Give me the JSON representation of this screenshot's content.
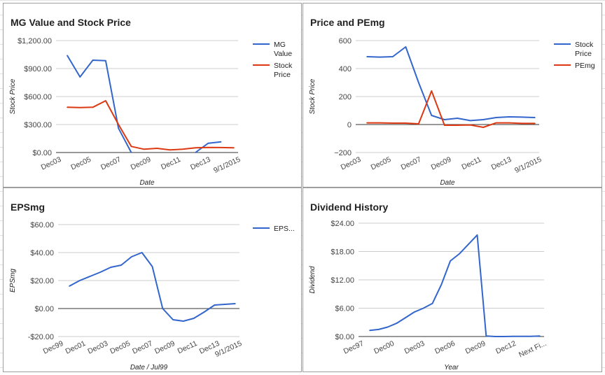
{
  "chart_data": [
    {
      "type": "line",
      "title": "MG Value and Stock Price",
      "xlabel": "Date",
      "ylabel": "Stock Price",
      "ylim": [
        0,
        1200
      ],
      "yticks": [
        0,
        300,
        600,
        900,
        1200
      ],
      "ytick_labels": [
        "$0.00",
        "$300.00",
        "$600.00",
        "$900.00",
        "$1,200.00"
      ],
      "x_tick_labels": [
        "Dec03",
        "Dec05",
        "Dec07",
        "Dec09",
        "Dec11",
        "Dec13",
        "9/1/2015"
      ],
      "grid": true,
      "legend": "right",
      "series": [
        {
          "name": "MG Value",
          "color": "#3366cc",
          "values": [
            1040,
            810,
            990,
            985,
            260,
            0,
            null,
            null,
            null,
            null,
            0,
            100,
            115,
            null
          ]
        },
        {
          "name": "Stock Price",
          "color": "#dc3912",
          "values": [
            485,
            482,
            485,
            555,
            300,
            65,
            35,
            45,
            28,
            35,
            50,
            55,
            53,
            50
          ]
        }
      ]
    },
    {
      "type": "line",
      "title": "Price and PEmg",
      "xlabel": "Date",
      "ylabel": "Stock Price",
      "ylim": [
        -200,
        600
      ],
      "yticks": [
        -200,
        0,
        200,
        400,
        600
      ],
      "ytick_labels": [
        "−200",
        "0",
        "200",
        "400",
        "600"
      ],
      "x_tick_labels": [
        "Dec03",
        "Dec05",
        "Dec07",
        "Dec09",
        "Dec11",
        "Dec13",
        "9/1/2015"
      ],
      "grid": true,
      "legend": "right",
      "series": [
        {
          "name": "Stock Price",
          "color": "#3366cc",
          "values": [
            485,
            482,
            485,
            555,
            300,
            65,
            35,
            45,
            28,
            35,
            50,
            55,
            53,
            50
          ]
        },
        {
          "name": "PEmg",
          "color": "#dc3912",
          "values": [
            12,
            12,
            10,
            10,
            5,
            240,
            -5,
            -5,
            -3,
            -20,
            12,
            12,
            8,
            8
          ]
        }
      ]
    },
    {
      "type": "line",
      "title": "EPSmg",
      "xlabel": "Date / Jul99",
      "ylabel": "EPSmg",
      "ylim": [
        -20,
        60
      ],
      "yticks": [
        -20,
        0,
        20,
        40,
        60
      ],
      "ytick_labels": [
        "-$20.00",
        "$0.00",
        "$20.00",
        "$40.00",
        "$60.00"
      ],
      "x_tick_labels": [
        "Dec99",
        "Dec01",
        "Dec03",
        "Dec05",
        "Dec07",
        "Dec09",
        "Dec11",
        "Dec13",
        "9/1/2015"
      ],
      "grid": true,
      "legend": "right",
      "series": [
        {
          "name": "EPS...",
          "color": "#3366cc",
          "values": [
            16,
            20,
            23,
            26,
            29.5,
            31,
            37,
            40,
            30,
            0,
            -8,
            -9,
            -7,
            -2.5,
            2.5,
            3,
            3.5
          ]
        }
      ]
    },
    {
      "type": "line",
      "title": "Dividend History",
      "xlabel": "Year",
      "ylabel": "Dividend",
      "ylim": [
        0,
        24
      ],
      "yticks": [
        0,
        6,
        12,
        18,
        24
      ],
      "ytick_labels": [
        "$0.00",
        "$6.00",
        "$12.00",
        "$18.00",
        "$24.00"
      ],
      "x_tick_labels": [
        "Dec97",
        "Dec00",
        "Dec03",
        "Dec06",
        "Dec09",
        "Dec12",
        "Next Fi..."
      ],
      "grid": true,
      "legend": "none",
      "series": [
        {
          "name": "",
          "color": "#3366cc",
          "values": [
            1.3,
            1.5,
            2.0,
            2.8,
            4.0,
            5.2,
            6.0,
            7.0,
            11.0,
            16.0,
            17.5,
            19.5,
            21.5,
            0.1,
            0.0,
            0.0,
            0.05,
            0.05,
            0.05,
            0.1
          ]
        }
      ]
    }
  ]
}
